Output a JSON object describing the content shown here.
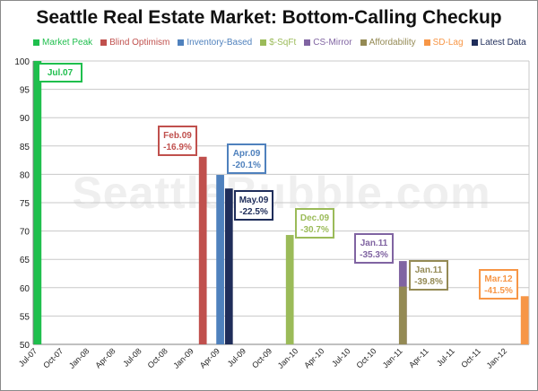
{
  "chart_data": {
    "type": "bar",
    "title": "Seattle Real Estate Market: Bottom-Calling Checkup",
    "watermark": "SeattleBubble.com",
    "ylim": [
      50,
      100
    ],
    "yticks": [
      50,
      55,
      60,
      65,
      70,
      75,
      80,
      85,
      90,
      95,
      100
    ],
    "categories": [
      "Jul-07",
      "Oct-07",
      "Jan-08",
      "Apr-08",
      "Jul-08",
      "Oct-08",
      "Jan-09",
      "Apr-09",
      "Jul-09",
      "Oct-09",
      "Jan-10",
      "Apr-10",
      "Jul-10",
      "Oct-10",
      "Jan-11",
      "Apr-11",
      "Jul-11",
      "Oct-11",
      "Jan-12"
    ],
    "grid": true,
    "legend_position": "top",
    "series": [
      {
        "name": "Market Peak",
        "color": "#1fbf4d",
        "month_index": 0,
        "value": 100,
        "label": "Jul.07",
        "sub": ""
      },
      {
        "name": "Blind Optimism",
        "color": "#c0504d",
        "month_index": 19,
        "value": 83.1,
        "label": "Feb.09",
        "sub": "-16.9%"
      },
      {
        "name": "Inventory-Based",
        "color": "#4f81bd",
        "month_index": 21,
        "value": 79.9,
        "label": "Apr.09",
        "sub": "-20.1%"
      },
      {
        "name": "$-SqFt",
        "color": "#9bbb59",
        "month_index": 29,
        "value": 69.3,
        "label": "Dec.09",
        "sub": "-30.7%"
      },
      {
        "name": "CS-Mirror",
        "color": "#8064a2",
        "month_index": 42,
        "value": 64.7,
        "label": "Jan.11",
        "sub": "-35.3%"
      },
      {
        "name": "Affordability",
        "color": "#948a54",
        "month_index": 42,
        "value": 60.2,
        "label": "Jan.11",
        "sub": "-39.8%"
      },
      {
        "name": "SD-Lag",
        "color": "#f79646",
        "month_index": 56,
        "value": 58.5,
        "label": "Mar.12",
        "sub": "-41.5%"
      },
      {
        "name": "Latest Data",
        "color": "#1f2d5a",
        "month_index": 22,
        "value": 77.5,
        "label": "May.09",
        "sub": "-22.5%"
      }
    ]
  }
}
